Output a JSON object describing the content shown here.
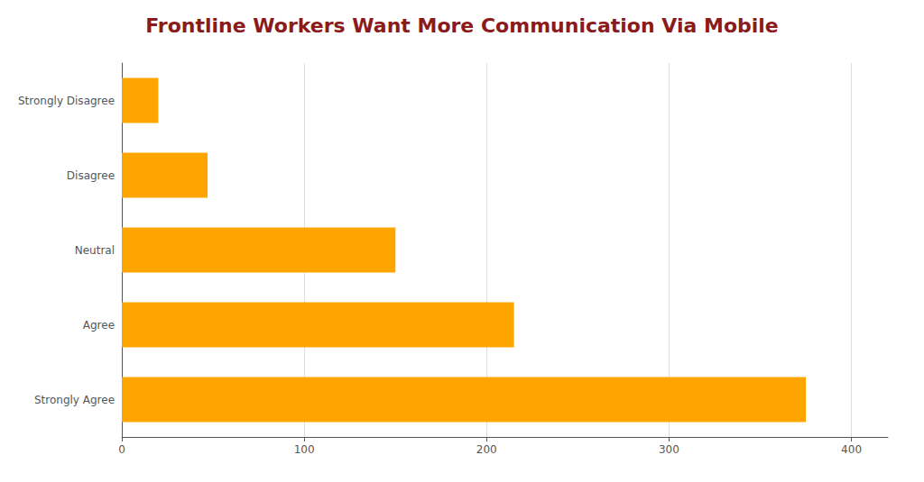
{
  "chart_data": {
    "type": "bar",
    "orientation": "horizontal",
    "title": "Frontline Workers Want More Communication Via Mobile",
    "categories": [
      "Strongly Disagree",
      "Disagree",
      "Neutral",
      "Agree",
      "Strongly Agree"
    ],
    "values": [
      20,
      47,
      150,
      215,
      375
    ],
    "color": "#FFA500",
    "xlim": [
      0,
      420
    ],
    "xticks": [
      0,
      100,
      200,
      300,
      400
    ],
    "grid": true
  }
}
